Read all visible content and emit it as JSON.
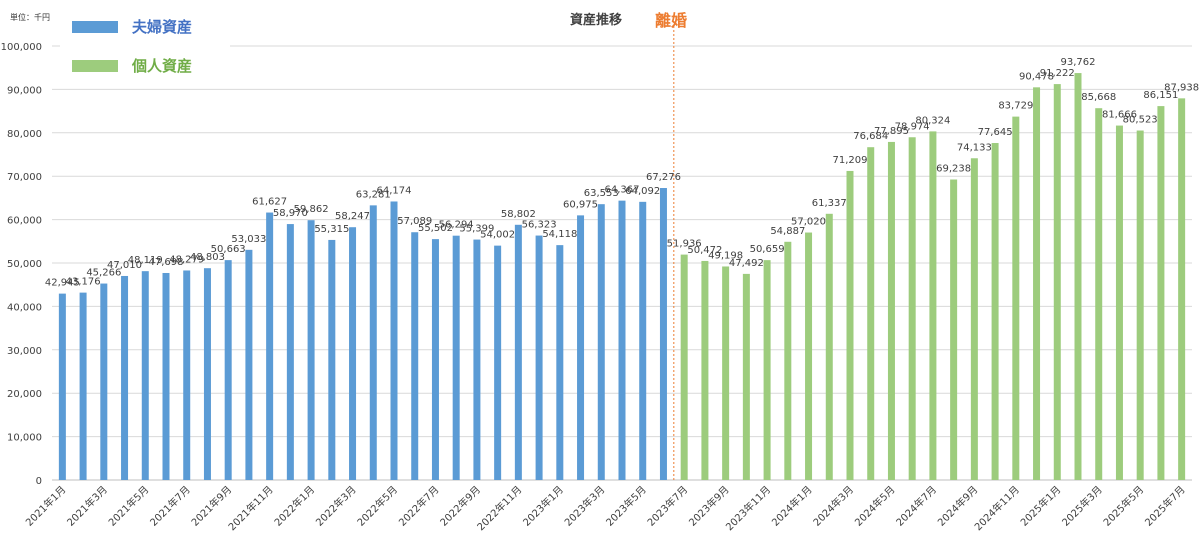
{
  "chart_data": {
    "type": "bar",
    "unit_label": "単位：千円",
    "title": "資産推移",
    "event_label": "離婚",
    "event_category": "2023年7月",
    "ylim": [
      0,
      100000
    ],
    "yticks": [
      0,
      10000,
      20000,
      30000,
      40000,
      50000,
      60000,
      70000,
      80000,
      90000,
      100000
    ],
    "ytick_labels": [
      "0",
      "10,000",
      "20,000",
      "30,000",
      "40,000",
      "50,000",
      "60,000",
      "70,000",
      "80,000",
      "90,000",
      "100,000"
    ],
    "grid": true,
    "legend_position": "top-left",
    "series": [
      {
        "name": "夫婦資産",
        "color": "#5b9bd5",
        "legend_text_color": "#4472c4"
      },
      {
        "name": "個人資産",
        "color": "#9dcc7d",
        "legend_text_color": "#70ad47"
      }
    ],
    "categories": [
      "2021年1月",
      "2021年2月",
      "2021年3月",
      "2021年4月",
      "2021年5月",
      "2021年6月",
      "2021年7月",
      "2021年8月",
      "2021年9月",
      "2021年10月",
      "2021年11月",
      "2021年12月",
      "2022年1月",
      "2022年2月",
      "2022年3月",
      "2022年4月",
      "2022年5月",
      "2022年6月",
      "2022年7月",
      "2022年8月",
      "2022年9月",
      "2022年10月",
      "2022年11月",
      "2022年12月",
      "2023年1月",
      "2023年2月",
      "2023年3月",
      "2023年4月",
      "2023年5月",
      "2023年6月",
      "2023年7月",
      "2023年8月",
      "2023年9月",
      "2023年10月",
      "2023年11月",
      "2023年12月",
      "2024年1月",
      "2024年2月",
      "2024年3月",
      "2024年4月",
      "2024年5月",
      "2024年6月",
      "2024年7月",
      "2024年8月",
      "2024年9月",
      "2024年10月",
      "2024年11月",
      "2024年12月",
      "2025年1月",
      "2025年2月",
      "2025年3月",
      "2025年4月",
      "2025年5月",
      "2025年6月",
      "2025年7月"
    ],
    "x_tick_labels": [
      "2021年1月",
      "2021年3月",
      "2021年5月",
      "2021年7月",
      "2021年9月",
      "2021年11月",
      "2022年1月",
      "2022年3月",
      "2022年5月",
      "2022年7月",
      "2022年9月",
      "2022年11月",
      "2023年1月",
      "2023年3月",
      "2023年5月",
      "2023年7月",
      "2023年9月",
      "2023年11月",
      "2024年1月",
      "2024年3月",
      "2024年5月",
      "2024年7月",
      "2024年9月",
      "2024年11月",
      "2025年1月",
      "2025年3月",
      "2025年5月",
      "2025年7月"
    ],
    "values": [
      42945,
      43176,
      45266,
      47010,
      48119,
      47698,
      48279,
      48803,
      50663,
      53033,
      61627,
      58970,
      59862,
      55315,
      58247,
      63281,
      64174,
      57089,
      55502,
      56294,
      55399,
      54002,
      58802,
      56323,
      54118,
      60975,
      63553,
      64367,
      64092,
      67276,
      51936,
      50472,
      49198,
      47492,
      50659,
      54887,
      57020,
      61337,
      71209,
      76684,
      77895,
      78974,
      80324,
      69238,
      74133,
      77645,
      83729,
      90478,
      91222,
      93762,
      85668,
      81666,
      80523,
      86151,
      87938
    ],
    "value_labels": [
      "42,945",
      "43,176",
      "45,266",
      "47,010",
      "48,119",
      "47,698",
      "48,279",
      "48,803",
      "50,663",
      "53,033",
      "61,627",
      "58,970",
      "59,862",
      "55,315",
      "58,247",
      "63,281",
      "64,174",
      "57,089",
      "55,502",
      "56,294",
      "55,399",
      "54,002",
      "58,802",
      "56,323",
      "54,118",
      "60,975",
      "63,553",
      "64,367",
      "64,092",
      "67,276",
      "51,936",
      "50,472",
      "49,198",
      "47,492",
      "50,659",
      "54,887",
      "57,020",
      "61,337",
      "71,209",
      "76,684",
      "77,895",
      "78,974",
      "80,324",
      "69,238",
      "74,133",
      "77,645",
      "83,729",
      "90,478",
      "91,222",
      "93,762",
      "85,668",
      "81,666",
      "80,523",
      "86,151",
      "87,938"
    ],
    "series_index": [
      0,
      0,
      0,
      0,
      0,
      0,
      0,
      0,
      0,
      0,
      0,
      0,
      0,
      0,
      0,
      0,
      0,
      0,
      0,
      0,
      0,
      0,
      0,
      0,
      0,
      0,
      0,
      0,
      0,
      0,
      1,
      1,
      1,
      1,
      1,
      1,
      1,
      1,
      1,
      1,
      1,
      1,
      1,
      1,
      1,
      1,
      1,
      1,
      1,
      1,
      1,
      1,
      1,
      1,
      1
    ]
  }
}
